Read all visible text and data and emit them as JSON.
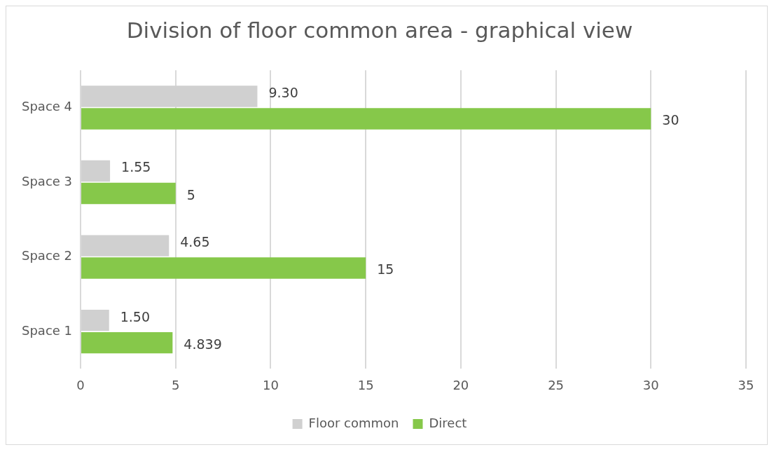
{
  "chart_data": {
    "type": "bar",
    "orientation": "horizontal",
    "title": "Division of floor common area - graphical view",
    "categories": [
      "Space 4",
      "Space 3",
      "Space 2",
      "Space 1"
    ],
    "series": [
      {
        "name": "Floor common",
        "color": "#d0d0d0",
        "values": [
          9.3,
          1.55,
          4.65,
          1.5
        ],
        "value_labels": [
          "9.30",
          "1.55",
          "4.65",
          "1.50"
        ]
      },
      {
        "name": "Direct",
        "color": "#86c84a",
        "values": [
          30,
          5,
          15,
          4.839
        ],
        "value_labels": [
          "30",
          "5",
          "15",
          "4.839"
        ]
      }
    ],
    "xlim": [
      0,
      35
    ],
    "xticks": [
      0,
      5,
      10,
      15,
      20,
      25,
      30,
      35
    ],
    "grid": "x",
    "legend": "bottom"
  }
}
